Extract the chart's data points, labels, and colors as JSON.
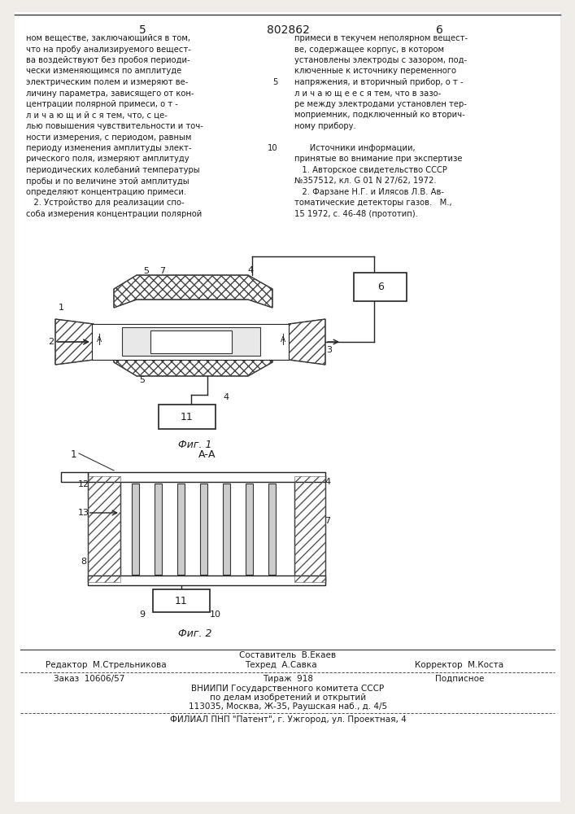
{
  "bg_color": "#f0ede8",
  "page_color": "#ffffff",
  "text_color": "#1a1a1a",
  "header_num_left": "5",
  "header_num_center": "802862",
  "header_num_right": "6",
  "col_left_text": [
    "ном веществе, заключающийся в том,",
    "что на пробу анализируемого вещест-",
    "ва воздействуют без пробоя периоди-",
    "чески изменяющимся по амплитуде",
    "электрическим полем и измеряют ве-",
    "личину параметра, зависящего от кон-",
    "центрации полярной примеси, о т -",
    "л и ч а ю щ и й с я тем, что, с це-",
    "лью повышения чувствительности и точ-",
    "ности измерения, с периодом, равным",
    "периоду изменения амплитуды элект-",
    "рического поля, измеряют амплитуду",
    "периодических колебаний температуры",
    "пробы и по величине этой амплитуды",
    "определяют концентрацию примеси.",
    "   2. Устройство для реализации спо-",
    "соба измерения концентрации полярной"
  ],
  "col_right_text": [
    "примеси в текучем неполярном вещест-",
    "ве, содержащее корпус, в котором",
    "установлены электроды с зазором, под-",
    "ключенные к источнику переменного",
    "напряжения, и вторичный прибор, о т -",
    "л и ч а ю щ е е с я тем, что в зазо-",
    "ре между электродами установлен тер-",
    "моприемник, подключенный ко вторич-",
    "ному прибору.",
    "",
    "      Источники информации,",
    "принятые во внимание при экспертизе",
    "   1. Авторское свидетельство СССР",
    "№357512, кл. G 01 N 27/62, 1972.",
    "   2. Фарзане Н.Г. и Илясов Л.В. Ав-",
    "томатические детекторы газов.   М.,",
    "15 1972, с. 46-48 (прототип)."
  ],
  "footer_composer": "Составитель  В.Екаев",
  "footer_editor": "Редактор  М.Стрельникова",
  "footer_techred": "Техред  А.Савка",
  "footer_corrector": "Корректор  М.Коста",
  "footer_order": "Заказ  10606/57",
  "footer_tirazh": "Тираж  918",
  "footer_podpis": "Подписное",
  "footer_vniip1": "ВНИИПИ Государственного комитета СССР",
  "footer_vniip2": "по делам изобретений и открытий",
  "footer_address": "113035, Москва, Ж-35, Раушская наб., д. 4/5",
  "footer_filial": "ФИЛИАЛ ПНП \"Патент\", г. Ужгород, ул. Проектная, 4"
}
